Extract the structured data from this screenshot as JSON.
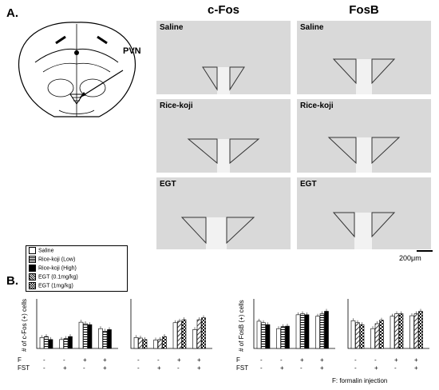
{
  "panels": {
    "a": "A.",
    "b": "B."
  },
  "diagram": {
    "pvn_label": "PVN"
  },
  "columns": [
    "c-Fos",
    "FosB"
  ],
  "rows": [
    "Saline",
    "Rice-koji",
    "EGT"
  ],
  "scale_bar": "200μm",
  "legend": [
    {
      "label": "Saline",
      "pattern": "white"
    },
    {
      "label": "Rice-koji (Low)",
      "pattern": "hstripe"
    },
    {
      "label": "Rice-koji (High)",
      "pattern": "black"
    },
    {
      "label": "EGT (0.1mg/kg)",
      "pattern": "diag"
    },
    {
      "label": "EGT (1mg/kg)",
      "pattern": "check"
    }
  ],
  "row_labels": {
    "f": "F",
    "fst": "FST"
  },
  "condition_marks": {
    "f": [
      "-",
      "-",
      "+",
      "+"
    ],
    "fst": [
      "-",
      "+",
      "-",
      "+"
    ]
  },
  "footnote": "F: formalin injection",
  "colors": {
    "bar_edge": "#000000",
    "micro_bg": "#d9d9d9"
  },
  "chart_data": [
    {
      "type": "bar",
      "ylabel": "# of c-Fos (+) cells",
      "ylim": [
        0,
        100
      ],
      "categories": [
        "-/-",
        "-/+",
        "+/-",
        "+/+"
      ],
      "series": [
        {
          "name": "Saline",
          "values": [
            22,
            18,
            53,
            40
          ]
        },
        {
          "name": "Rice-koji (Low)",
          "values": [
            24,
            20,
            50,
            35
          ]
        },
        {
          "name": "Rice-koji (High)",
          "values": [
            18,
            24,
            48,
            38
          ]
        }
      ]
    },
    {
      "type": "bar",
      "ylabel": "",
      "ylim": [
        0,
        100
      ],
      "categories": [
        "-/-",
        "-/+",
        "+/-",
        "+/+"
      ],
      "series": [
        {
          "name": "Saline",
          "values": [
            22,
            17,
            52,
            38
          ]
        },
        {
          "name": "EGT (0.1mg/kg)",
          "values": [
            21,
            18,
            55,
            58
          ]
        },
        {
          "name": "EGT (1mg/kg)",
          "values": [
            18,
            24,
            58,
            62
          ]
        }
      ]
    },
    {
      "type": "bar",
      "ylabel": "# of FosB (+) cells",
      "ylim": [
        0,
        100
      ],
      "categories": [
        "-/-",
        "-/+",
        "+/-",
        "+/+"
      ],
      "series": [
        {
          "name": "Saline",
          "values": [
            55,
            40,
            68,
            65
          ]
        },
        {
          "name": "Rice-koji (Low)",
          "values": [
            52,
            44,
            70,
            70
          ]
        },
        {
          "name": "Rice-koji (High)",
          "values": [
            48,
            45,
            68,
            75
          ]
        }
      ]
    },
    {
      "type": "bar",
      "ylabel": "",
      "ylim": [
        0,
        100
      ],
      "categories": [
        "-/-",
        "-/+",
        "+/-",
        "+/+"
      ],
      "series": [
        {
          "name": "Saline",
          "values": [
            56,
            40,
            65,
            66
          ]
        },
        {
          "name": "EGT (0.1mg/kg)",
          "values": [
            52,
            50,
            70,
            70
          ]
        },
        {
          "name": "EGT (1mg/kg)",
          "values": [
            48,
            57,
            70,
            75
          ]
        }
      ]
    }
  ]
}
